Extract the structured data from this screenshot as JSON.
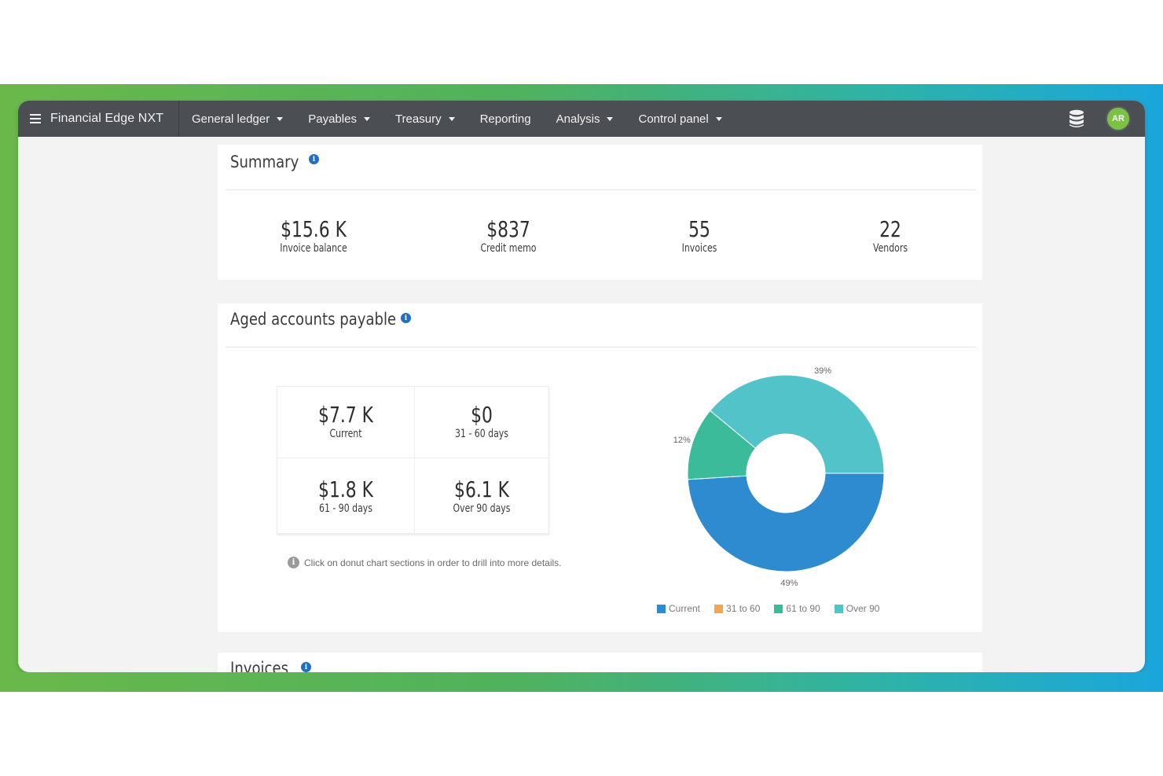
{
  "app": {
    "brand": "Financial Edge NXT",
    "avatar_initials": "AR"
  },
  "nav": {
    "items": [
      {
        "label": "General ledger",
        "dropdown": true
      },
      {
        "label": "Payables",
        "dropdown": true
      },
      {
        "label": "Treasury",
        "dropdown": true
      },
      {
        "label": "Reporting",
        "dropdown": false
      },
      {
        "label": "Analysis",
        "dropdown": true
      },
      {
        "label": "Control panel",
        "dropdown": true
      }
    ],
    "icons": [
      "hamburger-menu-icon",
      "database-icon"
    ]
  },
  "summary": {
    "title": "Summary",
    "metrics": [
      {
        "value": "$15.6 K",
        "label": "Invoice balance"
      },
      {
        "value": "$837",
        "label": "Credit memo"
      },
      {
        "value": "55",
        "label": "Invoices"
      },
      {
        "value": "22",
        "label": "Vendors"
      }
    ]
  },
  "aged": {
    "title": "Aged accounts payable",
    "cells": [
      {
        "value": "$7.7 K",
        "label": "Current"
      },
      {
        "value": "$0",
        "label": "31 - 60 days"
      },
      {
        "value": "$1.8 K",
        "label": "61 - 90 days"
      },
      {
        "value": "$6.1 K",
        "label": "Over 90 days"
      }
    ],
    "hint": "Click on donut chart sections in order to drill into more details."
  },
  "invoices": {
    "title": "Invoices"
  },
  "chart_data": {
    "type": "pie",
    "donut": true,
    "categories": [
      "Current",
      "31 to 60",
      "61 to 90",
      "Over 90"
    ],
    "values": [
      49,
      0,
      12,
      39
    ],
    "data_labels": [
      "49%",
      "",
      "12%",
      "39%"
    ],
    "colors": [
      "#2f8bd0",
      "#f0a657",
      "#3cbb9b",
      "#52c3c9"
    ],
    "legend": "bottom"
  }
}
